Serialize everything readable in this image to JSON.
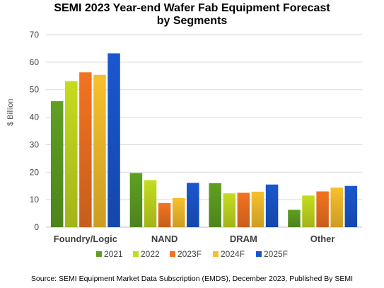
{
  "chart_data": {
    "type": "bar",
    "title": "SEMI 2023 Year-end Wafer Fab Equipment Forecast",
    "subtitle": "by Segments",
    "ylabel": "$ Billion",
    "xlabel": "",
    "ylim": [
      0,
      70
    ],
    "yticks": [
      0,
      10,
      20,
      30,
      40,
      50,
      60,
      70
    ],
    "grid": true,
    "legend_position": "bottom",
    "categories": [
      "Foundry/Logic",
      "NAND",
      "DRAM",
      "Other"
    ],
    "series": [
      {
        "name": "2021",
        "color": "#5fa022",
        "values": [
          45.8,
          19.7,
          16.0,
          6.3
        ]
      },
      {
        "name": "2022",
        "color": "#c5dc1f",
        "values": [
          53.1,
          17.1,
          12.3,
          11.5
        ]
      },
      {
        "name": "2023F",
        "color": "#f37321",
        "values": [
          56.3,
          8.8,
          12.5,
          13.0
        ]
      },
      {
        "name": "2024F",
        "color": "#f7c02c",
        "values": [
          55.4,
          10.6,
          12.9,
          14.4
        ]
      },
      {
        "name": "2025F",
        "color": "#1a57cf",
        "values": [
          63.2,
          16.1,
          15.5,
          15.0
        ]
      }
    ]
  },
  "source": "Source:  SEMI Equipment Market Data Subscription (EMDS), December 2023, Published By SEMI"
}
